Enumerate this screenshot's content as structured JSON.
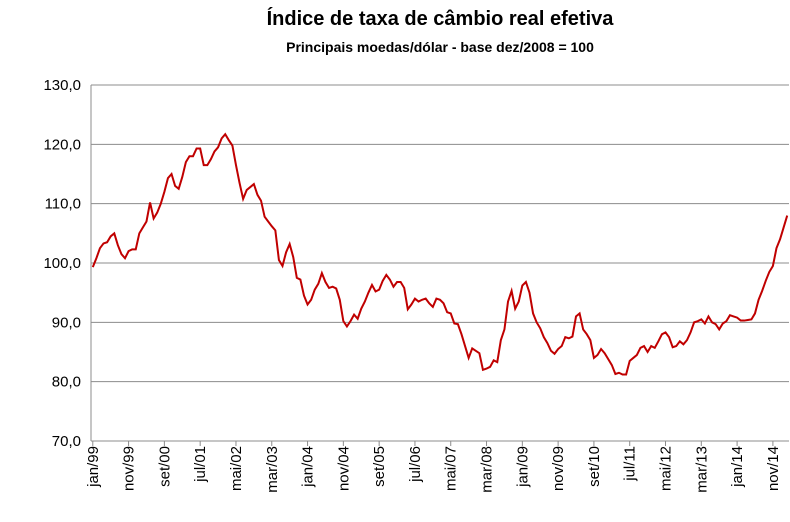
{
  "chart_data": {
    "type": "line",
    "title": "Índice de taxa de câmbio real efetiva",
    "subtitle": "Principais moedas/dólar - base dez/2008 = 100",
    "categories": [
      "jan/99",
      null,
      null,
      null,
      null,
      null,
      null,
      null,
      null,
      null,
      "nov/99",
      null,
      null,
      null,
      null,
      null,
      null,
      null,
      null,
      null,
      "set/00",
      null,
      null,
      null,
      null,
      null,
      null,
      null,
      null,
      null,
      "jul/01",
      null,
      null,
      null,
      null,
      null,
      null,
      null,
      null,
      null,
      "mai/02",
      null,
      null,
      null,
      null,
      null,
      null,
      null,
      null,
      null,
      "mar/03",
      null,
      null,
      null,
      null,
      null,
      null,
      null,
      null,
      null,
      "jan/04",
      null,
      null,
      null,
      null,
      null,
      null,
      null,
      null,
      null,
      "nov/04",
      null,
      null,
      null,
      null,
      null,
      null,
      null,
      null,
      null,
      "set/05",
      null,
      null,
      null,
      null,
      null,
      null,
      null,
      null,
      null,
      "jul/06",
      null,
      null,
      null,
      null,
      null,
      null,
      null,
      null,
      null,
      "mai/07",
      null,
      null,
      null,
      null,
      null,
      null,
      null,
      null,
      null,
      "mar/08",
      null,
      null,
      null,
      null,
      null,
      null,
      null,
      null,
      null,
      "jan/09",
      null,
      null,
      null,
      null,
      null,
      null,
      null,
      null,
      null,
      "nov/09",
      null,
      null,
      null,
      null,
      null,
      null,
      null,
      null,
      null,
      "set/10",
      null,
      null,
      null,
      null,
      null,
      null,
      null,
      null,
      null,
      "jul/11",
      null,
      null,
      null,
      null,
      null,
      null,
      null,
      null,
      null,
      "mai/12",
      null,
      null,
      null,
      null,
      null,
      null,
      null,
      null,
      null,
      "mar/13",
      null,
      null,
      null,
      null,
      null,
      null,
      null,
      null,
      null,
      "jan/14",
      null,
      null,
      null,
      null,
      null,
      null,
      null,
      null,
      null,
      "nov/14",
      null,
      null,
      null,
      null
    ],
    "series": [
      {
        "name": "Índice",
        "color": "#c00000",
        "values": [
          99.3,
          100.8,
          102.5,
          103.3,
          103.5,
          104.5,
          105,
          103,
          101.5,
          100.8,
          102,
          102.3,
          102.3,
          105,
          106,
          107,
          110.2,
          107.5,
          108.5,
          110,
          112,
          114.3,
          115,
          113,
          112.5,
          114.5,
          117,
          118,
          118,
          119.3,
          119.3,
          116.5,
          116.5,
          117.5,
          118.8,
          119.5,
          121,
          121.7,
          120.7,
          119.8,
          116.5,
          113.5,
          110.8,
          112.3,
          112.8,
          113.3,
          111.5,
          110.5,
          107.8,
          107,
          106.2,
          105.5,
          100.5,
          99.5,
          101.8,
          103.2,
          101,
          97.5,
          97.2,
          94.5,
          93,
          93.8,
          95.5,
          96.5,
          98.3,
          96.8,
          95.8,
          96,
          95.7,
          93.8,
          90.2,
          89.3,
          90.2,
          91.3,
          90.6,
          92.3,
          93.5,
          95,
          96.3,
          95.2,
          95.5,
          97,
          98,
          97.2,
          96,
          96.8,
          96.8,
          95.8,
          92.2,
          93,
          94,
          93.5,
          93.8,
          94,
          93.2,
          92.6,
          94,
          93.8,
          93.2,
          91.7,
          91.5,
          89.8,
          89.7,
          88,
          86,
          84,
          85.6,
          85.2,
          84.8,
          82,
          82.2,
          82.5,
          83.6,
          83.3,
          87,
          88.8,
          93.5,
          95.3,
          92.3,
          93.5,
          96.2,
          96.8,
          95,
          91.5,
          90,
          89,
          87.5,
          86.5,
          85.2,
          84.7,
          85.5,
          86,
          87.5,
          87.3,
          87.6,
          91,
          91.5,
          88.8,
          88,
          87,
          84,
          84.5,
          85.5,
          84.8,
          83.8,
          82.8,
          81.3,
          81.5,
          81.2,
          81.2,
          83.5,
          84,
          84.5,
          85.7,
          86,
          85,
          86,
          85.7,
          86.8,
          88,
          88.3,
          87.5,
          85.8,
          86,
          86.8,
          86.3,
          87,
          88.3,
          90,
          90.2,
          90.5,
          89.8,
          91,
          90,
          89.7,
          88.8,
          89.8,
          90.2,
          91.2,
          91,
          90.8,
          90.3,
          90.3,
          90.4,
          90.5,
          91.5,
          93.8,
          95.3,
          97,
          98.5,
          99.5,
          102.5,
          104,
          106,
          108
        ]
      }
    ],
    "ylim": [
      70,
      130
    ],
    "yticks": [
      {
        "value": 70,
        "label": "70,0"
      },
      {
        "value": 80,
        "label": "80,0"
      },
      {
        "value": 90,
        "label": "90,0"
      },
      {
        "value": 100,
        "label": "100,0"
      },
      {
        "value": 110,
        "label": "110,0"
      },
      {
        "value": 120,
        "label": "120,0"
      },
      {
        "value": 130,
        "label": "130,0"
      }
    ],
    "grid": true
  }
}
